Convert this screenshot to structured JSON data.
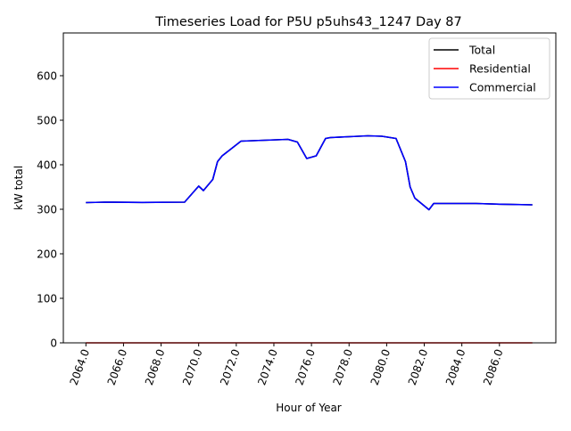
{
  "chart_data": {
    "type": "line",
    "title": "Timeseries Load for P5U p5uhs43_1247  Day 87",
    "xlabel": "Hour of Year",
    "ylabel": "kW total",
    "xlim": [
      2062.8,
      2089.0
    ],
    "ylim": [
      0,
      696
    ],
    "xticks": [
      2064,
      2066,
      2068,
      2070,
      2072,
      2074,
      2076,
      2078,
      2080,
      2082,
      2084,
      2086
    ],
    "xtick_labels": [
      "2064.0",
      "2066.0",
      "2068.0",
      "2070.0",
      "2072.0",
      "2074.0",
      "2076.0",
      "2078.0",
      "2080.0",
      "2082.0",
      "2084.0",
      "2086.0"
    ],
    "yticks": [
      0,
      100,
      200,
      300,
      400,
      500,
      600
    ],
    "ytick_labels": [
      "0",
      "100",
      "200",
      "300",
      "400",
      "500",
      "600"
    ],
    "grid": false,
    "legend_position": "top-right",
    "series": [
      {
        "name": "Total",
        "color": "#000000",
        "points": [
          [
            2064,
            315
          ],
          [
            2065,
            316
          ],
          [
            2067,
            315.5
          ],
          [
            2069.25,
            316
          ],
          [
            2070,
            352
          ],
          [
            2070.25,
            342
          ],
          [
            2070.75,
            367
          ],
          [
            2071,
            407
          ],
          [
            2071.25,
            420
          ],
          [
            2072.25,
            453
          ],
          [
            2073.5,
            455
          ],
          [
            2074.75,
            457
          ],
          [
            2075.25,
            451
          ],
          [
            2075.75,
            414
          ],
          [
            2076.25,
            420
          ],
          [
            2076.75,
            459
          ],
          [
            2077,
            461
          ],
          [
            2078,
            463
          ],
          [
            2079,
            465
          ],
          [
            2079.75,
            464
          ],
          [
            2080.5,
            459
          ],
          [
            2081,
            407
          ],
          [
            2081.25,
            350
          ],
          [
            2081.5,
            325
          ],
          [
            2082.25,
            299
          ],
          [
            2082.5,
            313
          ],
          [
            2084.75,
            313
          ],
          [
            2086,
            311.5
          ],
          [
            2087.75,
            310
          ]
        ]
      },
      {
        "name": "Residential",
        "color": "#ff0000",
        "points": [
          [
            2064,
            0
          ],
          [
            2087.75,
            0
          ]
        ]
      },
      {
        "name": "Commercial",
        "color": "#0000ff",
        "points": [
          [
            2064,
            315
          ],
          [
            2065,
            316
          ],
          [
            2067,
            315.5
          ],
          [
            2069.25,
            316
          ],
          [
            2070,
            352
          ],
          [
            2070.25,
            342
          ],
          [
            2070.75,
            367
          ],
          [
            2071,
            407
          ],
          [
            2071.25,
            420
          ],
          [
            2072.25,
            453
          ],
          [
            2073.5,
            455
          ],
          [
            2074.75,
            457
          ],
          [
            2075.25,
            451
          ],
          [
            2075.75,
            414
          ],
          [
            2076.25,
            420
          ],
          [
            2076.75,
            459
          ],
          [
            2077,
            461
          ],
          [
            2078,
            463
          ],
          [
            2079,
            465
          ],
          [
            2079.75,
            464
          ],
          [
            2080.5,
            459
          ],
          [
            2081,
            407
          ],
          [
            2081.25,
            350
          ],
          [
            2081.5,
            325
          ],
          [
            2082.25,
            299
          ],
          [
            2082.5,
            313
          ],
          [
            2084.75,
            313
          ],
          [
            2086,
            311.5
          ],
          [
            2087.75,
            310
          ]
        ]
      }
    ]
  }
}
